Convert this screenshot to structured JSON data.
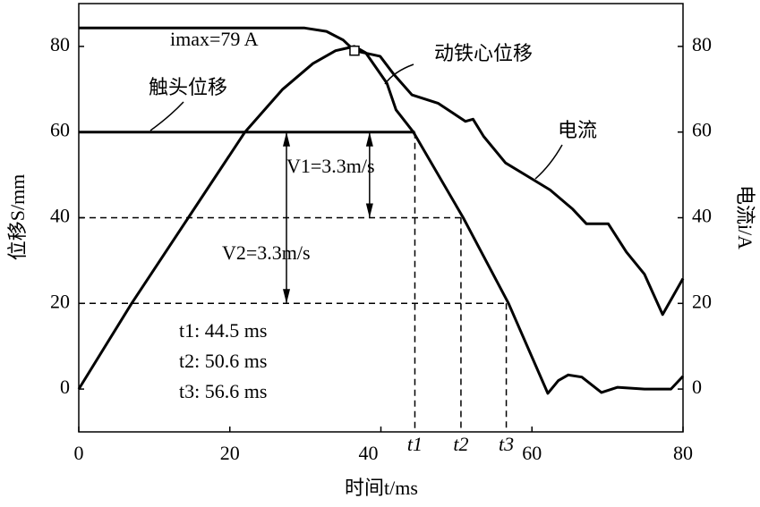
{
  "chart_data": {
    "type": "line",
    "x_label": "时间t/ms",
    "y_label": "位移S/mm",
    "y2_label": "电流i/A",
    "xlim": [
      0,
      80
    ],
    "xticks": [
      0,
      20,
      40,
      60,
      80
    ],
    "ylim": [
      -10,
      90
    ],
    "yticks": [
      0,
      20,
      40,
      60,
      80
    ],
    "y2lim": [
      -10,
      90
    ],
    "y2ticks": [
      0,
      20,
      40,
      60,
      80
    ],
    "series": [
      {
        "name": "动铁心位移",
        "color": "#000000",
        "x": [
          0,
          7,
          14.5,
          22,
          27,
          31,
          34,
          36.5,
          38,
          40.8,
          42,
          44.3,
          50.9,
          56.9,
          62.1,
          63.5,
          64.8,
          66.6,
          69.2,
          71.3,
          74.9,
          78.4,
          80
        ],
        "values": [
          0,
          20,
          40,
          60,
          70,
          76,
          79,
          80,
          78.5,
          71.4,
          65.2,
          60,
          40,
          20,
          -1,
          2,
          3.3,
          2.8,
          -0.8,
          0.4,
          0,
          0,
          3
        ]
      },
      {
        "name": "触头位移",
        "color": "#000000",
        "x": [
          0,
          44.5
        ],
        "values": [
          60,
          60
        ]
      },
      {
        "name": "电流",
        "color": "#000000",
        "axis": "y2",
        "x": [
          0,
          29.9,
          32.8,
          35,
          36.5,
          39.9,
          41.7,
          44.1,
          47.6,
          51.2,
          52.2,
          53.6,
          56.5,
          59.5,
          62.4,
          65.4,
          67.2,
          70.1,
          72.5,
          74.9,
          77.3,
          80
        ],
        "values": [
          84.3,
          84.3,
          83.5,
          81.5,
          79,
          77.7,
          73.5,
          68.7,
          66.7,
          62.5,
          63,
          59,
          52.8,
          49.6,
          46.5,
          42,
          38.6,
          38.6,
          32,
          26.8,
          17.4,
          25.8
        ]
      }
    ],
    "marker": {
      "x": 36.5,
      "value": 79,
      "label": "imax=79 A"
    },
    "times": [
      {
        "name": "t1",
        "value": 44.5,
        "level": 60,
        "label": "t1: 44.5 ms"
      },
      {
        "name": "t2",
        "value": 50.6,
        "level": 40,
        "label": "t2: 50.6 ms"
      },
      {
        "name": "t3",
        "value": 56.6,
        "level": 20,
        "label": "t3: 56.6 ms"
      }
    ],
    "velocities": [
      {
        "label": "V1=3.3m/s",
        "from": 60,
        "to": 40
      },
      {
        "label": "V2=3.3m/s",
        "from": 60,
        "to": 20
      }
    ]
  }
}
